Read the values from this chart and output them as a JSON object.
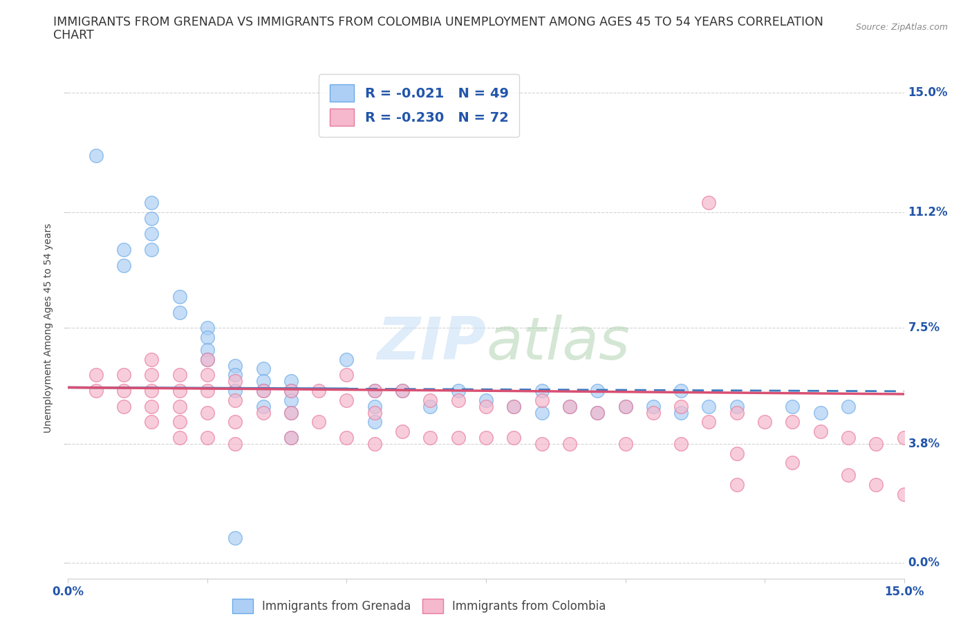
{
  "title_line1": "IMMIGRANTS FROM GRENADA VS IMMIGRANTS FROM COLOMBIA UNEMPLOYMENT AMONG AGES 45 TO 54 YEARS CORRELATION",
  "title_line2": "CHART",
  "source_text": "Source: ZipAtlas.com",
  "ylabel": "Unemployment Among Ages 45 to 54 years",
  "watermark": "ZIPAtlas",
  "xlim": [
    0.0,
    0.15
  ],
  "ylim": [
    -0.005,
    0.155
  ],
  "xticks": [
    0.0,
    0.025,
    0.05,
    0.075,
    0.1,
    0.125,
    0.15
  ],
  "yticks": [
    0.0,
    0.038,
    0.075,
    0.112,
    0.15
  ],
  "grenada_color": "#aecff5",
  "colombia_color": "#f5b8cc",
  "grenada_edge_color": "#6aaae8",
  "colombia_edge_color": "#e8789a",
  "grenada_line_color": "#3a7abf",
  "colombia_line_color": "#d94f72",
  "background_color": "#ffffff",
  "grid_color": "#c8c8c8",
  "title_color": "#333333",
  "tick_label_color": "#2255aa",
  "grenada_R": -0.021,
  "grenada_N": 49,
  "colombia_R": -0.23,
  "colombia_N": 72,
  "grenada_intercept": 0.056,
  "grenada_slope": -0.008,
  "colombia_intercept": 0.056,
  "colombia_slope": -0.014,
  "grenada_x": [
    0.005,
    0.01,
    0.01,
    0.015,
    0.015,
    0.015,
    0.015,
    0.02,
    0.02,
    0.025,
    0.025,
    0.025,
    0.025,
    0.03,
    0.03,
    0.03,
    0.035,
    0.035,
    0.035,
    0.035,
    0.04,
    0.04,
    0.04,
    0.04,
    0.04,
    0.05,
    0.055,
    0.055,
    0.055,
    0.06,
    0.065,
    0.07,
    0.075,
    0.08,
    0.085,
    0.085,
    0.09,
    0.095,
    0.095,
    0.1,
    0.105,
    0.11,
    0.11,
    0.115,
    0.12,
    0.13,
    0.135,
    0.14,
    0.03
  ],
  "grenada_y": [
    0.13,
    0.1,
    0.095,
    0.115,
    0.11,
    0.105,
    0.1,
    0.085,
    0.08,
    0.075,
    0.072,
    0.068,
    0.065,
    0.063,
    0.06,
    0.055,
    0.062,
    0.058,
    0.055,
    0.05,
    0.058,
    0.055,
    0.052,
    0.048,
    0.04,
    0.065,
    0.055,
    0.05,
    0.045,
    0.055,
    0.05,
    0.055,
    0.052,
    0.05,
    0.055,
    0.048,
    0.05,
    0.055,
    0.048,
    0.05,
    0.05,
    0.055,
    0.048,
    0.05,
    0.05,
    0.05,
    0.048,
    0.05,
    0.008
  ],
  "colombia_x": [
    0.005,
    0.005,
    0.01,
    0.01,
    0.01,
    0.015,
    0.015,
    0.015,
    0.015,
    0.015,
    0.02,
    0.02,
    0.02,
    0.02,
    0.02,
    0.025,
    0.025,
    0.025,
    0.025,
    0.025,
    0.03,
    0.03,
    0.03,
    0.03,
    0.035,
    0.035,
    0.04,
    0.04,
    0.04,
    0.045,
    0.045,
    0.05,
    0.05,
    0.05,
    0.055,
    0.055,
    0.055,
    0.06,
    0.06,
    0.065,
    0.065,
    0.07,
    0.07,
    0.075,
    0.075,
    0.08,
    0.08,
    0.085,
    0.085,
    0.09,
    0.09,
    0.095,
    0.1,
    0.1,
    0.105,
    0.11,
    0.11,
    0.115,
    0.12,
    0.12,
    0.125,
    0.13,
    0.13,
    0.135,
    0.14,
    0.14,
    0.145,
    0.145,
    0.15,
    0.15,
    0.115,
    0.12
  ],
  "colombia_y": [
    0.06,
    0.055,
    0.06,
    0.055,
    0.05,
    0.065,
    0.06,
    0.055,
    0.05,
    0.045,
    0.06,
    0.055,
    0.05,
    0.045,
    0.04,
    0.065,
    0.06,
    0.055,
    0.048,
    0.04,
    0.058,
    0.052,
    0.045,
    0.038,
    0.055,
    0.048,
    0.055,
    0.048,
    0.04,
    0.055,
    0.045,
    0.06,
    0.052,
    0.04,
    0.055,
    0.048,
    0.038,
    0.055,
    0.042,
    0.052,
    0.04,
    0.052,
    0.04,
    0.05,
    0.04,
    0.05,
    0.04,
    0.052,
    0.038,
    0.05,
    0.038,
    0.048,
    0.05,
    0.038,
    0.048,
    0.05,
    0.038,
    0.045,
    0.048,
    0.035,
    0.045,
    0.045,
    0.032,
    0.042,
    0.04,
    0.028,
    0.038,
    0.025,
    0.04,
    0.022,
    0.115,
    0.025
  ]
}
